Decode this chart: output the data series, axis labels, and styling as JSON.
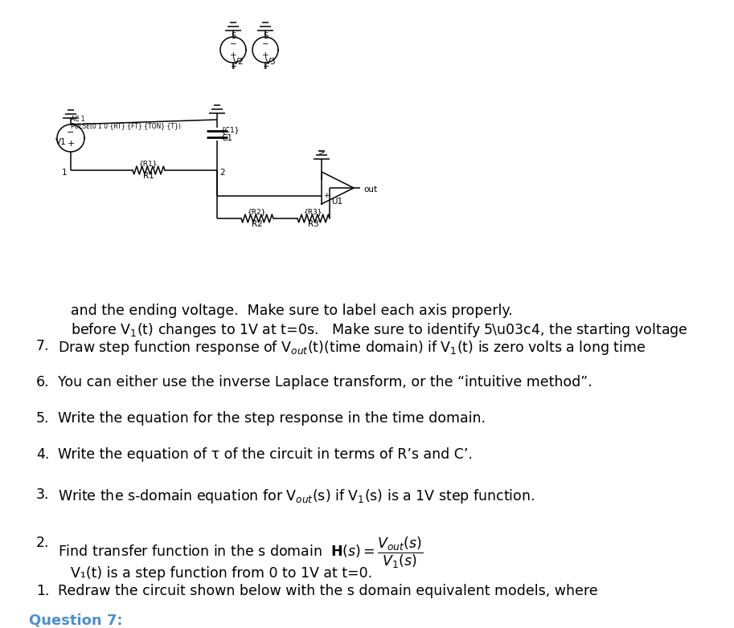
{
  "title": "Question 7:",
  "title_color": "#4a90d0",
  "bg_color": "#ffffff",
  "items": [
    {
      "num": "1.",
      "line1": "Redraw the circuit shown below with the s domain equivalent models, where",
      "line2": "V₁(t) is a step function from 0 to 1V at t=0."
    },
    {
      "num": "2.",
      "text": "Find transfer function in the s domain "
    },
    {
      "num": "3.",
      "text": "Write the s-domain equation for V$_{out}$(s) if V$_1$(s) is a 1V step function."
    },
    {
      "num": "4.",
      "text": "Write the equation of τ of the circuit in terms of R’s and C’."
    },
    {
      "num": "5.",
      "text": "Write the equation for the step response in the time domain."
    },
    {
      "num": "6.",
      "text": "You can either use the inverse Laplace transform, or the “intuitive method”."
    },
    {
      "num": "7.",
      "line1": "Draw step function response of V$_{out}$(t)(time domain) if V$_1$(t) is zero volts a long time",
      "line2": "before V$_1$(t) changes to 1V at t=0s.   Make sure to identify 5τ, the starting voltage",
      "line3": "and the ending voltage.  Make sure to label each axis properly."
    }
  ],
  "figsize": [
    9.13,
    7.82
  ],
  "dpi": 100
}
